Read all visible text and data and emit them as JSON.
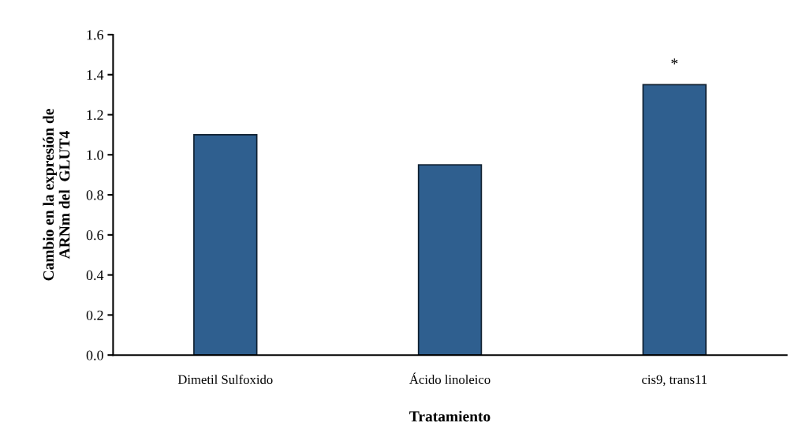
{
  "chart_data": {
    "type": "bar",
    "categories": [
      "Dimetil Sulfoxido",
      "Ácido linoleico",
      "cis9, trans11"
    ],
    "values": [
      1.1,
      0.95,
      1.35
    ],
    "color": "#2f5f8f",
    "xlabel": "Tratamiento",
    "ylabel": "Cambio en la expresión de\nARNm del  GLUT4",
    "ylim": [
      0,
      1.6
    ],
    "yticks": [
      {
        "value": 0,
        "label": "0.0"
      },
      {
        "value": 0.2,
        "label": "0.2"
      },
      {
        "value": 0.4,
        "label": "0.4"
      },
      {
        "value": 0.6,
        "label": "0.6"
      },
      {
        "value": 0.8,
        "label": "0.8"
      },
      {
        "value": 1.0,
        "label": "1.0"
      },
      {
        "value": 1.2,
        "label": "1.2"
      },
      {
        "value": 1.4,
        "label": "1.4"
      },
      {
        "value": 1.6,
        "label": "1.6"
      }
    ],
    "annotations": [
      "*"
    ],
    "grid": false,
    "legend": false
  }
}
